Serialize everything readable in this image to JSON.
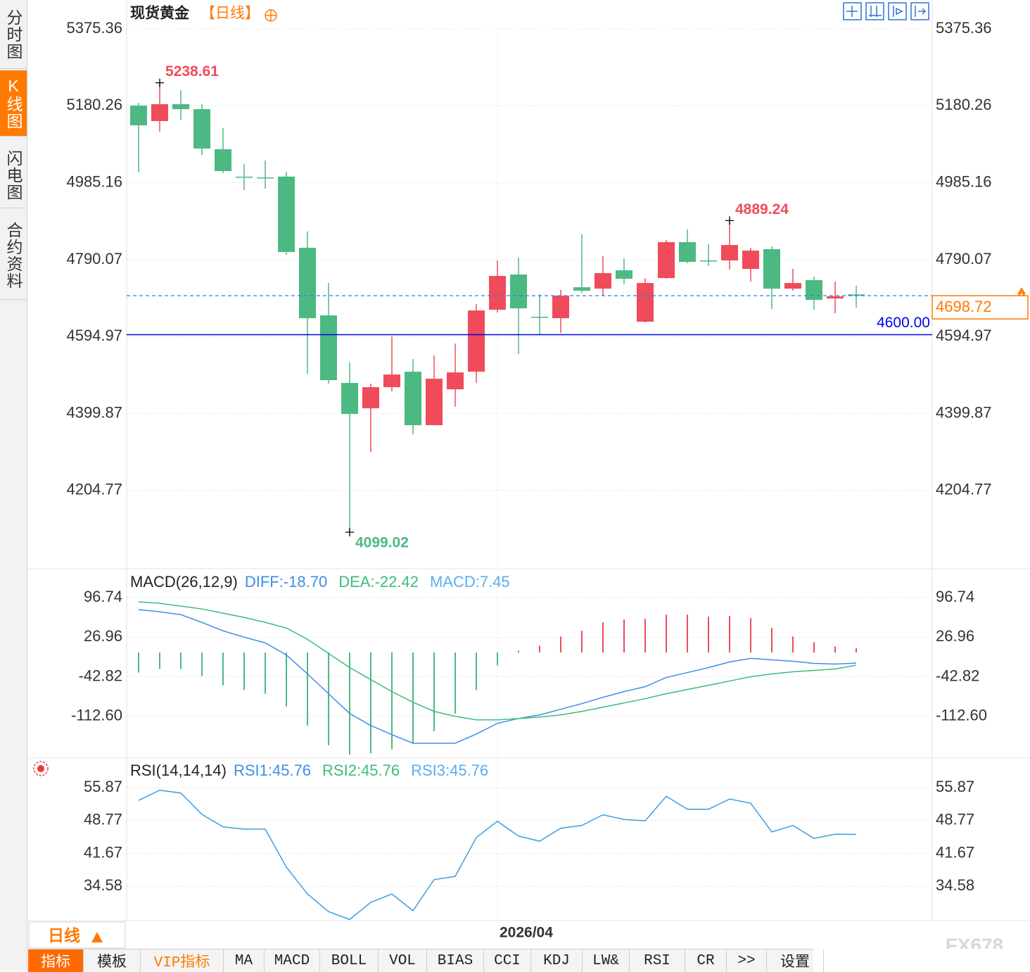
{
  "sidebar": {
    "tabs": [
      "分时图",
      "K线图",
      "闪电图",
      "合约资料"
    ]
  },
  "period_button": "日线",
  "toolbar": {
    "items": [
      "指标",
      "模板",
      "VIP指标",
      "MA",
      "MACD",
      "BOLL",
      "VOL",
      "BIAS",
      "CCI",
      "KDJ",
      "LW&",
      "RSI",
      "CR",
      ">>",
      "设置"
    ]
  },
  "watermark": "FX678",
  "chart_data": [
    {
      "type": "candlestick",
      "title": "现货黄金",
      "subtitle": "【日线】",
      "open": [
        5180.8,
        5141.5,
        5184.3,
        5171.8,
        5070.1,
        5000.5,
        4998.7,
        5000.7,
        4820.2,
        4648.8,
        4477.5,
        4413.2,
        4466.8,
        4506.0,
        4370.4,
        4461.4,
        4506.0,
        4663.1,
        4752.4,
        4645.3,
        4641.7,
        4720.2,
        4716.6,
        4763.1,
        4632.8,
        4743.4,
        4834.5,
        4788.1,
        4788.1,
        4766.6,
        4816.6,
        4716.6,
        4738.1,
        4691.7,
        4702.0
      ],
      "high": [
        5187.9,
        5238.61,
        5220.0,
        5184.3,
        5123.6,
        5032.6,
        5041.5,
        5013.0,
        4862.1,
        4730.9,
        4529.2,
        4475.7,
        4595.3,
        4538.2,
        4547.1,
        4577.4,
        4677.4,
        4788.1,
        4795.2,
        4702.4,
        4713.1,
        4854.1,
        4798.8,
        4793.4,
        4743.4,
        4839.8,
        4866.6,
        4829.1,
        4889.24,
        4820.2,
        4823.8,
        4766.6,
        4747.0,
        4734.5,
        4723.8
      ],
      "low": [
        5011.2,
        5114.7,
        5145.0,
        5055.8,
        5009.4,
        4966.6,
        4970.1,
        4802.3,
        4500.7,
        4475.7,
        4099.02,
        4302.5,
        4456.1,
        4347.2,
        4370.4,
        4416.8,
        4477.5,
        4655.9,
        4550.6,
        4598.8,
        4604.2,
        4706.0,
        4698.8,
        4727.4,
        4631.0,
        4741.6,
        4781.0,
        4773.8,
        4764.8,
        4734.5,
        4664.9,
        4711.3,
        4663.1,
        4654.2,
        4668.5
      ],
      "close": [
        5130.8,
        5184.3,
        5171.8,
        5071.9,
        5014.8,
        4998.7,
        4997.0,
        4809.5,
        4641.7,
        4484.6,
        4398.9,
        4466.8,
        4498.9,
        4370.4,
        4488.2,
        4504.2,
        4661.3,
        4748.8,
        4666.7,
        4643.5,
        4698.8,
        4711.3,
        4755.9,
        4741.6,
        4730.9,
        4834.5,
        4784.5,
        4786.3,
        4827.3,
        4813.1,
        4716.6,
        4730.9,
        4688.1,
        4697.0,
        4698.72
      ],
      "up_color": "#ef4b5b",
      "down_color": "#4cb982",
      "ylim": [
        4006.5,
        5448.5
      ],
      "yticks": [
        4204.77,
        4399.87,
        4594.97,
        4790.07,
        4985.16,
        5180.26,
        5375.36
      ],
      "grid": true,
      "annotations": [
        5238.61,
        4889.24,
        4099.02
      ],
      "reference_lines": [
        {
          "value": 4600,
          "label": "4600.00",
          "color": "#0000ee"
        }
      ],
      "last_price": 4698.72,
      "last_price_color": "#ff7a00"
    },
    {
      "type": "macd",
      "title": "MACD(26,12,9)",
      "legend": [
        {
          "label": "DIFF:-18.70",
          "color": "#3d8ee8"
        },
        {
          "label": "DEA:-22.42",
          "color": "#3cbd7a"
        },
        {
          "label": "MACD:7.45",
          "color": "#5aaeee"
        }
      ],
      "series": [
        {
          "style": "line",
          "color": "#3d8ee8",
          "values": [
            75.6,
            71.8,
            66.8,
            53.1,
            38.2,
            27.0,
            17.0,
            -4.2,
            -37.8,
            -72.7,
            -107.6,
            -128.8,
            -145.0,
            -160.0,
            -160.0,
            -160.0,
            -143.8,
            -125.1,
            -116.4,
            -110.1,
            -100.1,
            -90.2,
            -79.0,
            -69.0,
            -60.3,
            -44.1,
            -35.4,
            -26.6,
            -16.7,
            -10.4,
            -12.9,
            -15.4,
            -19.2,
            -20.4,
            -18.7
          ]
        },
        {
          "style": "line",
          "color": "#3cbd7a",
          "values": [
            89.3,
            86.8,
            81.8,
            76.8,
            69.3,
            61.8,
            53.1,
            43.2,
            23.2,
            -1.7,
            -26.6,
            -47.8,
            -69.0,
            -87.7,
            -103.9,
            -112.6,
            -118.8,
            -118.8,
            -116.4,
            -113.8,
            -110.1,
            -103.9,
            -96.4,
            -89.0,
            -81.5,
            -72.7,
            -65.3,
            -57.8,
            -50.3,
            -42.8,
            -37.8,
            -34.1,
            -31.6,
            -29.1,
            -22.42
          ]
        },
        {
          "style": "bar",
          "up_color": "#ef4b5b",
          "down_color": "#4cb982",
          "values": [
            -35.4,
            -29.1,
            -29.1,
            -41.6,
            -57.8,
            -66.5,
            -72.7,
            -95.2,
            -128.8,
            -163.7,
            -180.0,
            -178.0,
            -170.7,
            -160.0,
            -138.8,
            -107.6,
            -66.5,
            -22.9,
            3.0,
            12.0,
            28.2,
            38.2,
            53.1,
            58.1,
            59.4,
            66.8,
            66.8,
            63.1,
            64.3,
            60.6,
            43.2,
            28.2,
            18.2,
            10.7,
            7.45
          ]
        }
      ],
      "ylim": [
        -184.9,
        145.3
      ],
      "yticks": [
        {
          "value": -112.6,
          "label": "-112.60"
        },
        -42.82,
        26.96,
        96.74
      ],
      "grid": true
    },
    {
      "type": "line",
      "title": "RSI(14,14,14)",
      "legend": [
        {
          "label": "RSI1:45.76",
          "color": "#3d8ee8"
        },
        {
          "label": "RSI2:45.76",
          "color": "#3cbd7a"
        },
        {
          "label": "RSI3:45.76",
          "color": "#5aaeee"
        }
      ],
      "categories": [
        null,
        null,
        null,
        null,
        null,
        null,
        null,
        null,
        null,
        null,
        null,
        null,
        null,
        null,
        null,
        null,
        null,
        "2026/04",
        null,
        null,
        null,
        null,
        null,
        null,
        null,
        null,
        null,
        null,
        null,
        null,
        null,
        null,
        null,
        null,
        null
      ],
      "series": [
        {
          "color": "#3d9ee0",
          "values": [
            53.1,
            55.3,
            54.7,
            50.1,
            47.4,
            46.9,
            46.9,
            38.7,
            32.9,
            29.1,
            27.4,
            31.1,
            32.9,
            29.3,
            36.0,
            36.7,
            45.1,
            48.6,
            45.4,
            44.3,
            47.1,
            47.7,
            50.0,
            49.0,
            48.7,
            54.0,
            51.2,
            51.2,
            53.4,
            52.5,
            46.3,
            47.7,
            44.9,
            45.8,
            45.76
          ]
        }
      ],
      "ylim": [
        27.15,
        62.1
      ],
      "yticks": [
        34.58,
        41.67,
        48.77,
        55.87
      ],
      "grid": true
    }
  ]
}
